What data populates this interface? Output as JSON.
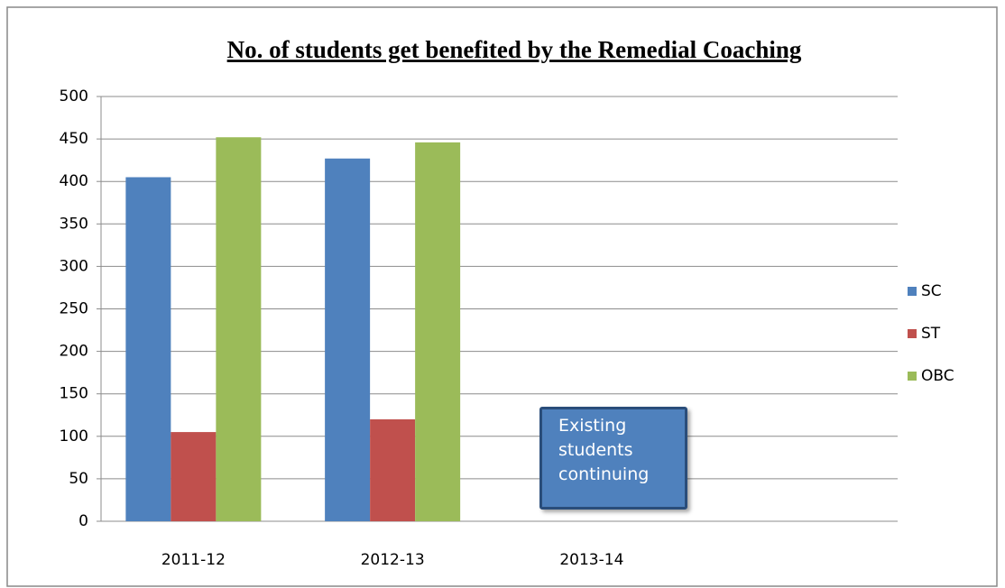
{
  "chart_data": {
    "type": "bar",
    "title": "No. of students get benefited by the Remedial Coaching",
    "categories": [
      "2011-12",
      "2012-13",
      "2013-14",
      null
    ],
    "series": [
      {
        "name": "SC",
        "color": "#4f81bd",
        "values": [
          405,
          427,
          null,
          null
        ]
      },
      {
        "name": "ST",
        "color": "#c0504d",
        "values": [
          105,
          120,
          null,
          null
        ]
      },
      {
        "name": "OBC",
        "color": "#9bbb59",
        "values": [
          452,
          446,
          null,
          null
        ]
      }
    ],
    "ylim": [
      0,
      500
    ],
    "yticks": [
      0,
      50,
      100,
      150,
      200,
      250,
      300,
      350,
      400,
      450,
      500
    ],
    "grid": true,
    "legend": "right",
    "annotation": "Existing students continuing"
  }
}
